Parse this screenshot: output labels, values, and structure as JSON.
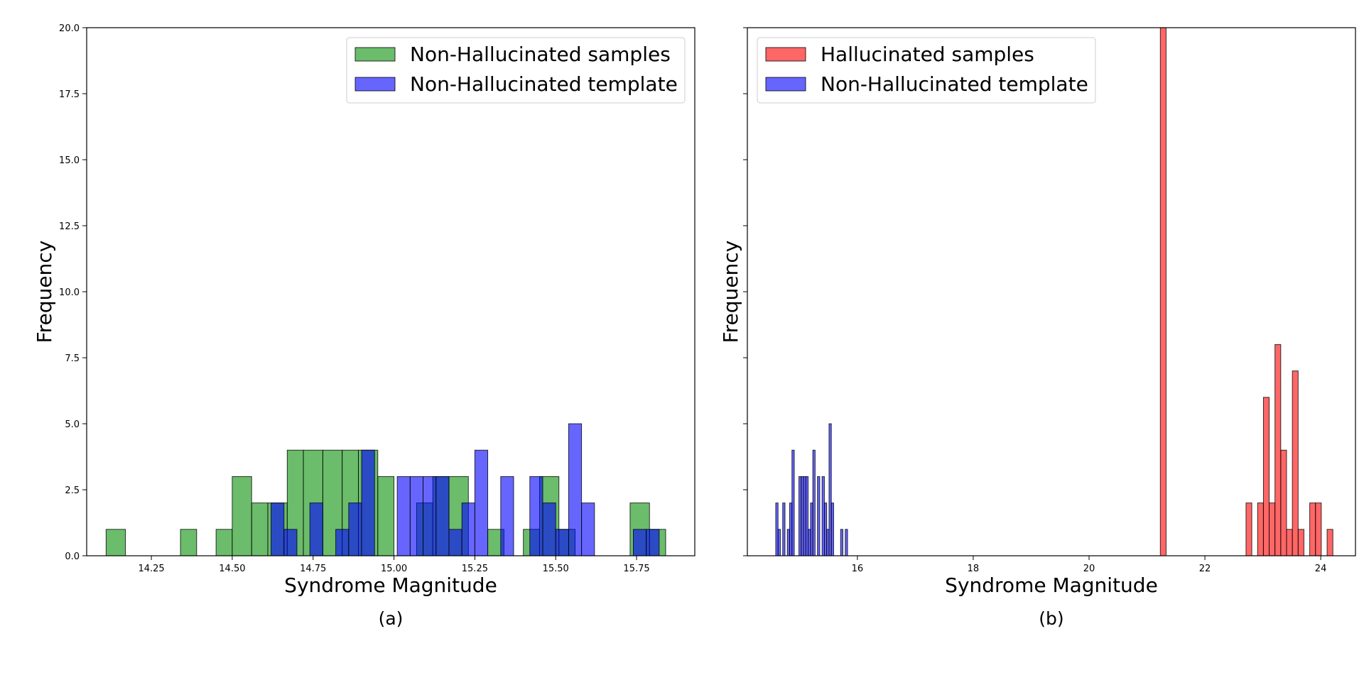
{
  "chart_data": [
    {
      "type": "bar",
      "panel_label": "(a)",
      "xlabel": "Syndrome Magnitude",
      "ylabel": "Frequency",
      "xlim": [
        14.05,
        15.93
      ],
      "ylim": [
        0,
        20
      ],
      "xticks": [
        14.25,
        14.5,
        14.75,
        15.0,
        15.25,
        15.5,
        15.75
      ],
      "xtick_labels": [
        "14.25",
        "14.50",
        "14.75",
        "15.00",
        "15.25",
        "15.50",
        "15.75"
      ],
      "yticks": [
        0,
        2.5,
        5,
        7.5,
        10,
        12.5,
        15,
        17.5,
        20
      ],
      "ytick_labels": [
        "0.0",
        "2.5",
        "5.0",
        "7.5",
        "10.0",
        "12.5",
        "15.0",
        "17.5",
        "20.0"
      ],
      "grid": false,
      "legend_position": "top-right",
      "series": [
        {
          "name": "Non-Hallucinated samples",
          "color": "#2ca02c",
          "bins": [
            [
              14.11,
              14.17,
              1
            ],
            [
              14.34,
              14.39,
              1
            ],
            [
              14.45,
              14.5,
              1
            ],
            [
              14.5,
              14.56,
              3
            ],
            [
              14.56,
              14.61,
              2
            ],
            [
              14.61,
              14.67,
              2
            ],
            [
              14.67,
              14.72,
              4
            ],
            [
              14.72,
              14.78,
              4
            ],
            [
              14.78,
              14.84,
              4
            ],
            [
              14.84,
              14.89,
              4
            ],
            [
              14.89,
              14.95,
              4
            ],
            [
              14.95,
              15.0,
              3
            ],
            [
              15.07,
              15.12,
              2
            ],
            [
              15.12,
              15.17,
              3
            ],
            [
              15.17,
              15.23,
              3
            ],
            [
              15.29,
              15.34,
              1
            ],
            [
              15.4,
              15.45,
              1
            ],
            [
              15.45,
              15.51,
              3
            ],
            [
              15.51,
              15.56,
              1
            ],
            [
              15.73,
              15.79,
              2
            ],
            [
              15.79,
              15.84,
              1
            ]
          ]
        },
        {
          "name": "Non-Hallucinated template",
          "color": "#0000ff",
          "bins": [
            [
              14.62,
              14.66,
              2
            ],
            [
              14.66,
              14.7,
              1
            ],
            [
              14.74,
              14.78,
              2
            ],
            [
              14.82,
              14.86,
              1
            ],
            [
              14.86,
              14.9,
              2
            ],
            [
              14.9,
              14.94,
              4
            ],
            [
              15.01,
              15.05,
              3
            ],
            [
              15.05,
              15.09,
              3
            ],
            [
              15.09,
              15.13,
              3
            ],
            [
              15.13,
              15.17,
              3
            ],
            [
              15.17,
              15.21,
              1
            ],
            [
              15.21,
              15.25,
              2
            ],
            [
              15.25,
              15.29,
              4
            ],
            [
              15.33,
              15.37,
              3
            ],
            [
              15.42,
              15.46,
              3
            ],
            [
              15.46,
              15.5,
              2
            ],
            [
              15.5,
              15.54,
              1
            ],
            [
              15.54,
              15.58,
              5
            ],
            [
              15.58,
              15.62,
              2
            ],
            [
              15.74,
              15.78,
              1
            ],
            [
              15.78,
              15.82,
              1
            ]
          ]
        }
      ]
    },
    {
      "type": "bar",
      "panel_label": "(b)",
      "xlabel": "Syndrome Magnitude",
      "ylabel": "Frequency",
      "xlim": [
        14.1,
        24.6
      ],
      "ylim": [
        0,
        20
      ],
      "xticks": [
        16,
        18,
        20,
        22,
        24
      ],
      "xtick_labels": [
        "16",
        "18",
        "20",
        "22",
        "24"
      ],
      "yticks": [
        0,
        2.5,
        5,
        7.5,
        10,
        12.5,
        15,
        17.5,
        20
      ],
      "ytick_labels": [
        "",
        "",
        "",
        "",
        "",
        "",
        "",
        "",
        ""
      ],
      "grid": false,
      "legend_position": "top-left",
      "series": [
        {
          "name": "Hallucinated samples",
          "color": "#ff0000",
          "bins": [
            [
              21.23,
              21.33,
              20
            ],
            [
              22.71,
              22.81,
              2
            ],
            [
              22.91,
              23.01,
              2
            ],
            [
              23.01,
              23.11,
              6
            ],
            [
              23.11,
              23.21,
              2
            ],
            [
              23.21,
              23.31,
              8
            ],
            [
              23.31,
              23.41,
              4
            ],
            [
              23.41,
              23.51,
              1
            ],
            [
              23.51,
              23.61,
              7
            ],
            [
              23.61,
              23.71,
              1
            ],
            [
              23.81,
              23.91,
              2
            ],
            [
              23.91,
              24.01,
              2
            ],
            [
              24.11,
              24.21,
              1
            ]
          ]
        },
        {
          "name": "Non-Hallucinated template",
          "color": "#0000ff",
          "bins": [
            [
              14.59,
              14.63,
              2
            ],
            [
              14.63,
              14.67,
              1
            ],
            [
              14.71,
              14.75,
              2
            ],
            [
              14.79,
              14.83,
              1
            ],
            [
              14.83,
              14.87,
              2
            ],
            [
              14.87,
              14.91,
              4
            ],
            [
              14.99,
              15.03,
              3
            ],
            [
              15.03,
              15.07,
              3
            ],
            [
              15.07,
              15.11,
              3
            ],
            [
              15.11,
              15.15,
              3
            ],
            [
              15.15,
              15.19,
              1
            ],
            [
              15.19,
              15.23,
              2
            ],
            [
              15.23,
              15.27,
              4
            ],
            [
              15.31,
              15.35,
              3
            ],
            [
              15.39,
              15.43,
              3
            ],
            [
              15.43,
              15.47,
              2
            ],
            [
              15.47,
              15.51,
              1
            ],
            [
              15.51,
              15.55,
              5
            ],
            [
              15.55,
              15.59,
              2
            ],
            [
              15.71,
              15.75,
              1
            ],
            [
              15.79,
              15.83,
              1
            ]
          ]
        }
      ]
    }
  ]
}
